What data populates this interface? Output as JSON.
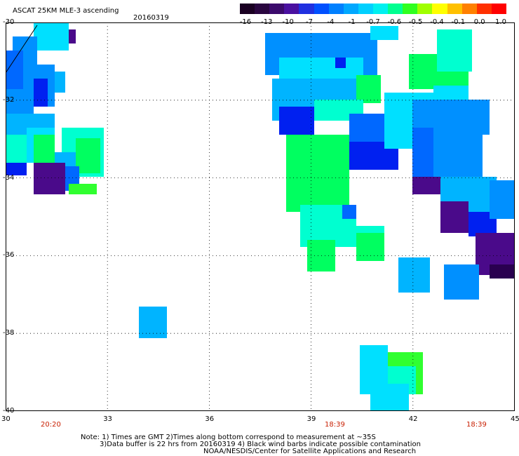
{
  "header": {
    "title": "ASCAT 25KM MLE-3 ascending",
    "date": "20160319"
  },
  "colorbar": {
    "labels": [
      "-16",
      "-13",
      "-10",
      "-7",
      "-4",
      "-1",
      "-0.7",
      "-0.6",
      "-0.5",
      "-0.4",
      "-0.1",
      "0.0",
      "1.0"
    ],
    "colors": [
      "#1a0022",
      "#2a0640",
      "#3b0a6c",
      "#4a10a0",
      "#2030e0",
      "#0050ff",
      "#0080ff",
      "#00a8ff",
      "#00d0ff",
      "#00f0f0",
      "#00ff90",
      "#30ff20",
      "#a0ff00",
      "#ffff00",
      "#ffc000",
      "#ff8000",
      "#ff3000",
      "#ff0000"
    ]
  },
  "axes": {
    "x_ticks": [
      "30",
      "33",
      "36",
      "39",
      "42",
      "45"
    ],
    "y_ticks": [
      "-30",
      "-32",
      "-34",
      "-36",
      "-38",
      "-40"
    ],
    "xlim": [
      30,
      45
    ],
    "ylim": [
      -40,
      -30
    ]
  },
  "times": [
    "20:20",
    "18:39",
    "18:39"
  ],
  "notes": {
    "line1": "Note: 1) Times are GMT 2)Times along bottom correspond to measurement at ~35S",
    "line2": "3)Data buffer is 22 hrs from 20160319 4) Black wind barbs indicate possible contamination",
    "line3": "NOAA/NESDIS/Center for Satellite Applications and Research"
  },
  "palette": {
    "deep_purple": "#4a0a8a",
    "dark_navy": "#2a0050",
    "blue": "#0020f0",
    "mid_blue": "#0068ff",
    "azure": "#0090ff",
    "sky": "#00b4ff",
    "cyan": "#00e0ff",
    "aqua": "#00ffd0",
    "green": "#00ff60",
    "bright_green": "#30ff30"
  }
}
